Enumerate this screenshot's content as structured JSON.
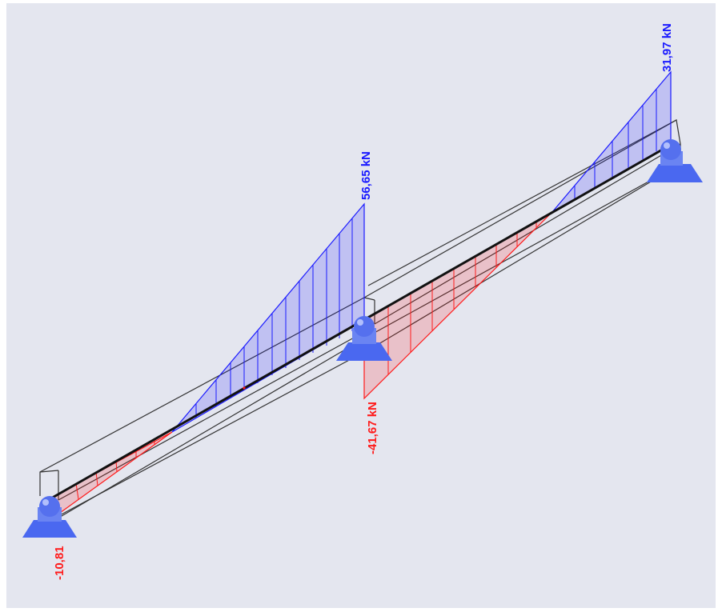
{
  "colors": {
    "background": "#e4e6ef",
    "positive_shear": "#1a1aff",
    "negative_shear": "#ff1a1a",
    "support": "#5b77ee",
    "beam_axis": "#111111",
    "section_outline": "#333333"
  },
  "labels": {
    "left_end_value": "-10,81",
    "middle_left_value": "56,65 kN",
    "middle_right_value": "-41,67 kN",
    "right_end_value": "31,97 kN"
  },
  "chart_data": {
    "type": "area",
    "quantity": "shear force",
    "unit": "kN",
    "spans": [
      {
        "x_start": 0,
        "x_end": 1,
        "v_start": -10.81,
        "v_end": 56.65
      },
      {
        "x_start": 1,
        "x_end": 2,
        "v_start": -41.67,
        "v_end": 31.97
      }
    ],
    "supports": [
      "pin-support",
      "pin-support",
      "pin-support"
    ]
  }
}
